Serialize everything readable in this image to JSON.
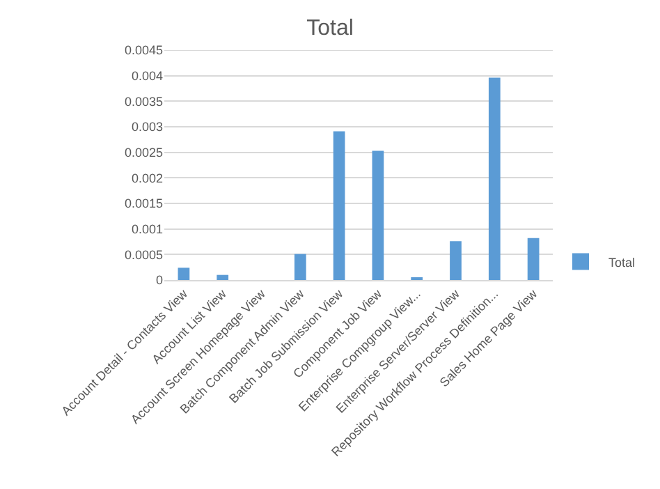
{
  "chart_data": {
    "type": "bar",
    "title": "Total",
    "categories": [
      "Account Detail - Contacts View",
      "Account List View",
      "Account Screen Homepage View",
      "Batch Component Admin View",
      "Batch Job Submission View",
      "Component Job View",
      "Enterprise Compgroup View...",
      "Enterprise Server/Server View",
      "Repository Workflow Process Definition...",
      "Sales Home Page View"
    ],
    "series": [
      {
        "name": "Total",
        "color": "#5b9bd5",
        "values": [
          0.00024,
          0.0001,
          0,
          0.00051,
          0.00291,
          0.00253,
          5e-05,
          0.00076,
          0.00396,
          0.00082
        ]
      }
    ],
    "ylim": [
      0,
      0.0045
    ],
    "yticks": [
      0,
      0.0005,
      0.001,
      0.0015,
      0.002,
      0.0025,
      0.003,
      0.0035,
      0.004,
      0.0045
    ],
    "grid": "y",
    "legend": "right"
  }
}
